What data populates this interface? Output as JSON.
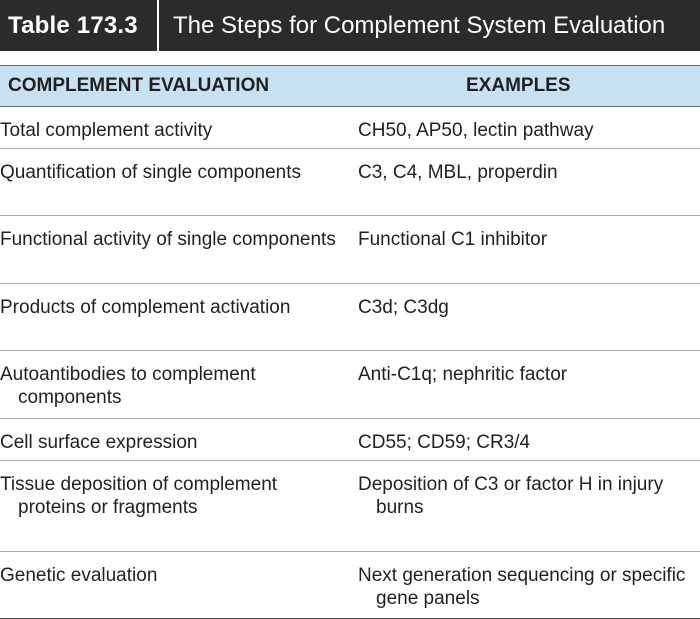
{
  "table": {
    "number": "Table 173.3",
    "caption": "The Steps for Complement System Evaluation",
    "headers": {
      "evaluation": "COMPLEMENT EVALUATION",
      "examples": "EXAMPLES"
    },
    "rows": [
      {
        "evaluation": "Total complement activity",
        "examples": "CH50, AP50, lectin pathway"
      },
      {
        "evaluation": "Quantification of single components",
        "examples": "C3, C4, MBL, properdin"
      },
      {
        "evaluation": "Functional activity of single components",
        "examples": "Functional C1 inhibitor"
      },
      {
        "evaluation": "Products of complement activation",
        "examples": "C3d; C3dg"
      },
      {
        "evaluation": "Autoantibodies to complement components",
        "examples": "Anti-C1q; nephritic factor"
      },
      {
        "evaluation": "Cell surface expression",
        "examples": "CD55; CD59; CR3/4"
      },
      {
        "evaluation": "Tissue deposition of complement proteins or fragments",
        "examples": "Deposition of C3 or factor H in injury burns"
      },
      {
        "evaluation": "Genetic evaluation",
        "examples": "Next generation sequencing or specific gene panels"
      }
    ]
  },
  "colors": {
    "title_bar": "#2b2b2b",
    "header_row": "#c7e1f3",
    "text": "#231f20"
  }
}
